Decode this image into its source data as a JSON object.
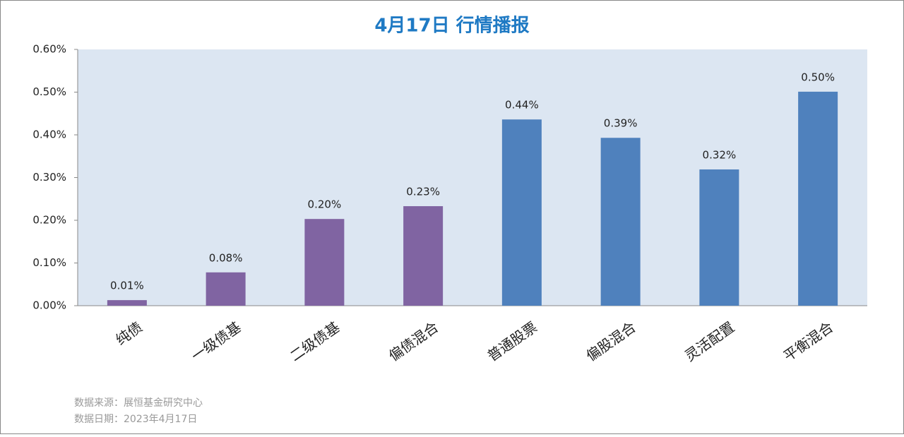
{
  "chart_data": {
    "type": "bar",
    "title": "4月17日  行情播报",
    "categories": [
      "纯债",
      "一级债基",
      "二级债基",
      "偏债混合",
      "普通股票",
      "偏股混合",
      "灵活配置",
      "平衡混合"
    ],
    "values": [
      0.013,
      0.078,
      0.203,
      0.233,
      0.436,
      0.393,
      0.319,
      0.501
    ],
    "value_labels": [
      "0.01%",
      "0.08%",
      "0.20%",
      "0.23%",
      "0.44%",
      "0.39%",
      "0.32%",
      "0.50%"
    ],
    "colors": [
      "#8064a2",
      "#8064a2",
      "#8064a2",
      "#8064a2",
      "#4f81bd",
      "#4f81bd",
      "#4f81bd",
      "#4f81bd"
    ],
    "ylim": [
      0,
      0.6
    ],
    "yticks": [
      {
        "value": 0,
        "label": "0.00%"
      },
      {
        "value": 0.1,
        "label": "0.10%"
      },
      {
        "value": 0.2,
        "label": "0.20%"
      },
      {
        "value": 0.3,
        "label": "0.30%"
      },
      {
        "value": 0.4,
        "label": "0.40%"
      },
      {
        "value": 0.5,
        "label": "0.50%"
      },
      {
        "value": 0.6,
        "label": "0.60%"
      }
    ],
    "plot_background": "#dce6f2",
    "notes": [
      "数据来源：展恒基金研究中心",
      "数据日期：2023年4月17日"
    ]
  }
}
